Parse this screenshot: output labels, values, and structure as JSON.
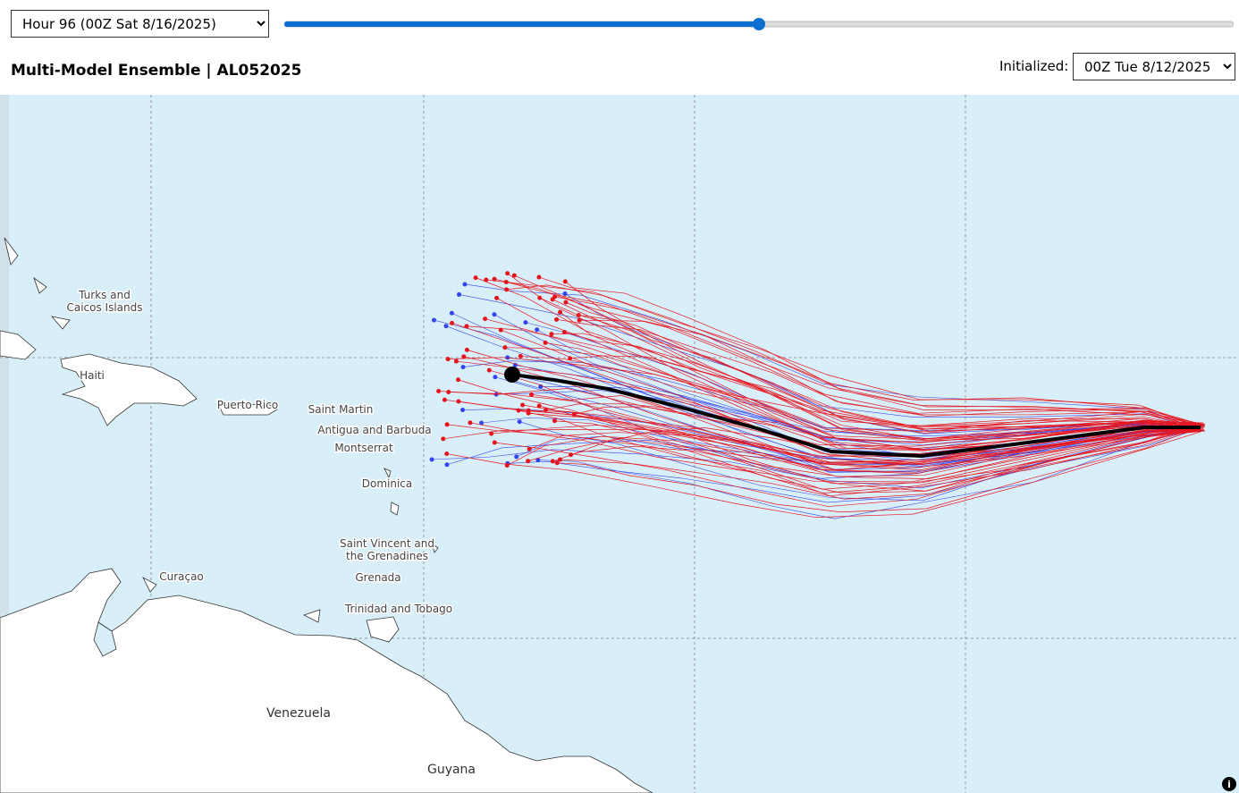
{
  "controls": {
    "hour_select": "Hour 96 (00Z Sat 8/16/2025)",
    "init_label": "Initialized:",
    "init_select": "00Z Tue 8/12/2025"
  },
  "header": {
    "title": "Multi-Model Ensemble | AL052025"
  },
  "map_labels": [
    {
      "lines": [
        "Turks and",
        "Caicos Islands"
      ]
    },
    {
      "lines": [
        "Haiti"
      ]
    },
    {
      "lines": [
        "Puerto Rico"
      ]
    },
    {
      "lines": [
        "Saint Martin"
      ]
    },
    {
      "lines": [
        "Antigua and Barbuda"
      ]
    },
    {
      "lines": [
        "Montserrat"
      ]
    },
    {
      "lines": [
        "Dominica"
      ]
    },
    {
      "lines": [
        "Saint Vincent and",
        "the Grenadines"
      ]
    },
    {
      "lines": [
        "Grenada"
      ]
    },
    {
      "lines": [
        "Curaçao"
      ]
    },
    {
      "lines": [
        "Trinidad and Tobago"
      ]
    },
    {
      "lines": [
        "Venezuela"
      ]
    },
    {
      "lines": [
        "Guyana"
      ]
    }
  ]
}
